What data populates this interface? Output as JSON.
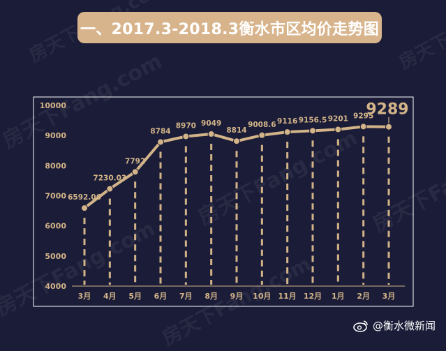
{
  "watermark": "房天下Fang.com",
  "footer": {
    "icon": "weibo-icon",
    "text": "@衡水微新闻"
  },
  "colors": {
    "background": "#1b1c38",
    "accent": "#d7b48c",
    "line": "#d2b488",
    "axis_text": "#d2b488",
    "value_text": "#d2b488"
  },
  "chart_data": {
    "type": "line",
    "title": "一、2017.3-2018.3衡水市区均价走势图",
    "categories": [
      "3月",
      "4月",
      "5月",
      "6月",
      "7月",
      "8月",
      "9月",
      "10月",
      "11月",
      "12月",
      "1月",
      "2月",
      "3月"
    ],
    "values": [
      6592.06,
      7230.03,
      7792,
      8784,
      8970,
      9049,
      8814,
      9008.6,
      9116,
      9156.5,
      9201,
      9295,
      9289
    ],
    "value_labels": [
      "6592.06",
      "7230.03",
      "7792",
      "8784",
      "8970",
      "9049",
      "8814",
      "9008.6",
      "9116",
      "9156.5",
      "9201",
      "9295",
      "9289"
    ],
    "yticks": [
      "4000",
      "5000",
      "6000",
      "7000",
      "8000",
      "9000",
      "10000"
    ],
    "ylim": [
      4000,
      10000
    ],
    "highlight_index": 12,
    "grid": false,
    "legend": "none"
  }
}
